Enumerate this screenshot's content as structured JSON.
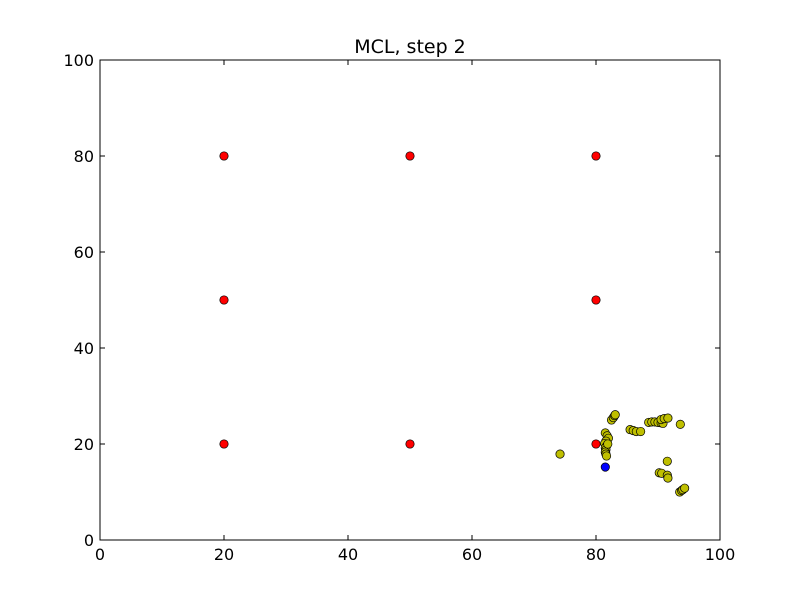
{
  "chart_data": {
    "type": "scatter",
    "title": "MCL, step 2",
    "xlabel": "",
    "ylabel": "",
    "xlim": [
      0,
      100
    ],
    "ylim": [
      0,
      100
    ],
    "xticks": [
      0,
      20,
      40,
      60,
      80,
      100
    ],
    "yticks": [
      0,
      20,
      40,
      60,
      80,
      100
    ],
    "grid": false,
    "series": [
      {
        "color": "#ff0000",
        "points": [
          [
            20,
            80
          ],
          [
            50,
            80
          ],
          [
            80,
            80
          ],
          [
            20,
            50
          ],
          [
            80,
            50
          ],
          [
            20,
            20
          ],
          [
            50,
            20
          ],
          [
            80,
            20
          ]
        ]
      },
      {
        "color": "#bfbf00",
        "points": [
          [
            74.2,
            17.9
          ],
          [
            81.5,
            22.3
          ],
          [
            81.8,
            21.7
          ],
          [
            82.0,
            21.2
          ],
          [
            81.6,
            20.6
          ],
          [
            81.4,
            20.1
          ],
          [
            81.7,
            19.6
          ],
          [
            81.5,
            19.2
          ],
          [
            81.6,
            18.8
          ],
          [
            81.5,
            18.3
          ],
          [
            81.6,
            17.9
          ],
          [
            81.7,
            17.5
          ],
          [
            81.9,
            20.0
          ],
          [
            82.5,
            25.0
          ],
          [
            82.8,
            25.5
          ],
          [
            83.0,
            25.9
          ],
          [
            83.1,
            26.1
          ],
          [
            85.5,
            23.0
          ],
          [
            86.0,
            22.8
          ],
          [
            86.5,
            22.6
          ],
          [
            87.2,
            22.6
          ],
          [
            88.5,
            24.5
          ],
          [
            89.0,
            24.6
          ],
          [
            89.5,
            24.6
          ],
          [
            90.0,
            24.5
          ],
          [
            90.5,
            24.4
          ],
          [
            90.8,
            24.3
          ],
          [
            90.5,
            25.1
          ],
          [
            91.0,
            25.3
          ],
          [
            91.6,
            25.4
          ],
          [
            93.6,
            24.1
          ],
          [
            91.5,
            16.4
          ],
          [
            90.2,
            14.0
          ],
          [
            90.6,
            13.9
          ],
          [
            91.5,
            13.5
          ],
          [
            91.6,
            12.9
          ],
          [
            93.5,
            10.0
          ],
          [
            93.8,
            10.3
          ],
          [
            94.0,
            10.5
          ],
          [
            94.3,
            10.8
          ]
        ]
      },
      {
        "color": "#0000ff",
        "points": [
          [
            81.5,
            15.2
          ]
        ]
      }
    ]
  }
}
